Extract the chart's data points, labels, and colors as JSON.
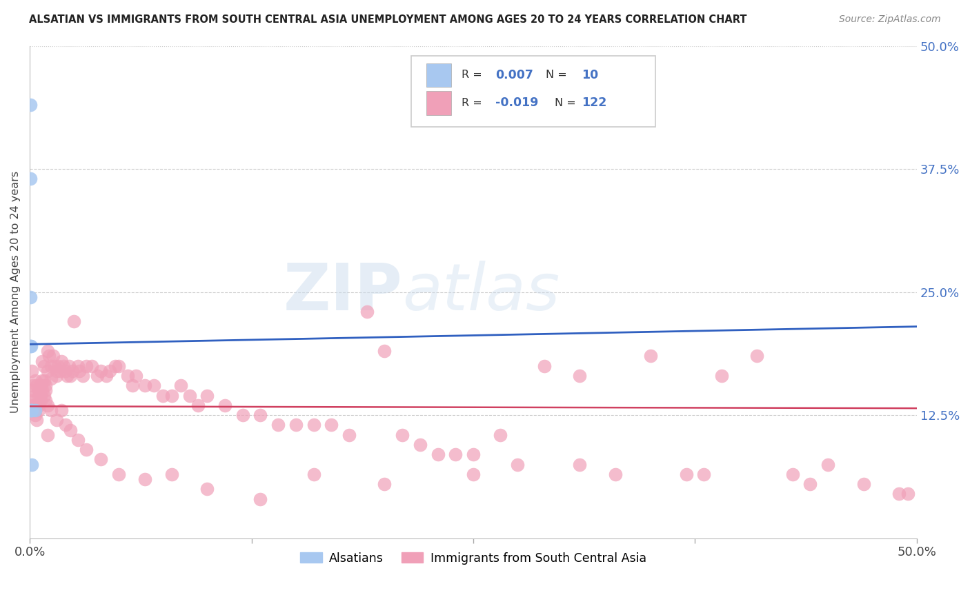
{
  "title": "ALSATIAN VS IMMIGRANTS FROM SOUTH CENTRAL ASIA UNEMPLOYMENT AMONG AGES 20 TO 24 YEARS CORRELATION CHART",
  "source": "Source: ZipAtlas.com",
  "ylabel": "Unemployment Among Ages 20 to 24 years",
  "xlim": [
    0.0,
    0.5
  ],
  "ylim": [
    0.0,
    0.5
  ],
  "yticks": [
    0.0,
    0.125,
    0.25,
    0.375,
    0.5
  ],
  "xticks": [
    0.0,
    0.125,
    0.25,
    0.375,
    0.5
  ],
  "xtick_labels": [
    "0.0%",
    "",
    "",
    "",
    "50.0%"
  ],
  "ytick_labels_right": [
    "",
    "12.5%",
    "25.0%",
    "37.5%",
    "50.0%"
  ],
  "legend_labels": [
    "Alsatians",
    "Immigrants from South Central Asia"
  ],
  "blue_R": "0.007",
  "blue_N": "10",
  "pink_R": "-0.019",
  "pink_N": "122",
  "blue_color": "#A8C8F0",
  "pink_color": "#F0A0B8",
  "blue_line_color": "#3060C0",
  "pink_line_color": "#D04060",
  "blue_points_x": [
    0.0005,
    0.0005,
    0.0005,
    0.0005,
    0.0007,
    0.0007,
    0.0007,
    0.001,
    0.001,
    0.003
  ],
  "blue_points_y": [
    0.44,
    0.365,
    0.245,
    0.195,
    0.195,
    0.13,
    0.13,
    0.075,
    0.13,
    0.13
  ],
  "blue_line_y0": 0.197,
  "blue_line_y1": 0.215,
  "pink_line_y0": 0.134,
  "pink_line_y1": 0.132,
  "pink_points_x": [
    0.001,
    0.001,
    0.002,
    0.002,
    0.003,
    0.003,
    0.003,
    0.004,
    0.004,
    0.005,
    0.005,
    0.005,
    0.006,
    0.006,
    0.007,
    0.007,
    0.008,
    0.008,
    0.009,
    0.009,
    0.01,
    0.01,
    0.011,
    0.012,
    0.012,
    0.013,
    0.014,
    0.015,
    0.015,
    0.016,
    0.017,
    0.018,
    0.019,
    0.02,
    0.021,
    0.022,
    0.023,
    0.024,
    0.025,
    0.027,
    0.028,
    0.03,
    0.032,
    0.035,
    0.038,
    0.04,
    0.043,
    0.045,
    0.048,
    0.05,
    0.055,
    0.058,
    0.06,
    0.065,
    0.07,
    0.075,
    0.08,
    0.085,
    0.09,
    0.095,
    0.1,
    0.11,
    0.12,
    0.13,
    0.14,
    0.15,
    0.16,
    0.17,
    0.18,
    0.19,
    0.2,
    0.21,
    0.22,
    0.23,
    0.24,
    0.25,
    0.265,
    0.275,
    0.29,
    0.31,
    0.33,
    0.35,
    0.37,
    0.39,
    0.41,
    0.43,
    0.45,
    0.47,
    0.49,
    0.001,
    0.002,
    0.003,
    0.004,
    0.005,
    0.006,
    0.007,
    0.008,
    0.009,
    0.01,
    0.012,
    0.015,
    0.018,
    0.02,
    0.023,
    0.027,
    0.032,
    0.04,
    0.05,
    0.065,
    0.08,
    0.1,
    0.13,
    0.16,
    0.2,
    0.25,
    0.31,
    0.38,
    0.44,
    0.495,
    0.003,
    0.006,
    0.01
  ],
  "pink_points_y": [
    0.17,
    0.15,
    0.155,
    0.135,
    0.145,
    0.135,
    0.13,
    0.155,
    0.135,
    0.15,
    0.145,
    0.135,
    0.155,
    0.145,
    0.18,
    0.16,
    0.175,
    0.16,
    0.155,
    0.15,
    0.19,
    0.17,
    0.185,
    0.175,
    0.162,
    0.185,
    0.175,
    0.17,
    0.165,
    0.175,
    0.17,
    0.18,
    0.175,
    0.17,
    0.165,
    0.175,
    0.165,
    0.17,
    0.22,
    0.175,
    0.17,
    0.165,
    0.175,
    0.175,
    0.165,
    0.17,
    0.165,
    0.17,
    0.175,
    0.175,
    0.165,
    0.155,
    0.165,
    0.155,
    0.155,
    0.145,
    0.145,
    0.155,
    0.145,
    0.135,
    0.145,
    0.135,
    0.125,
    0.125,
    0.115,
    0.115,
    0.115,
    0.115,
    0.105,
    0.23,
    0.19,
    0.105,
    0.095,
    0.085,
    0.085,
    0.085,
    0.105,
    0.075,
    0.175,
    0.165,
    0.065,
    0.185,
    0.065,
    0.165,
    0.185,
    0.065,
    0.075,
    0.055,
    0.045,
    0.14,
    0.13,
    0.125,
    0.12,
    0.13,
    0.14,
    0.15,
    0.145,
    0.14,
    0.135,
    0.13,
    0.12,
    0.13,
    0.115,
    0.11,
    0.1,
    0.09,
    0.08,
    0.065,
    0.06,
    0.065,
    0.05,
    0.04,
    0.065,
    0.055,
    0.065,
    0.075,
    0.065,
    0.055,
    0.045,
    0.16,
    0.155,
    0.105
  ]
}
